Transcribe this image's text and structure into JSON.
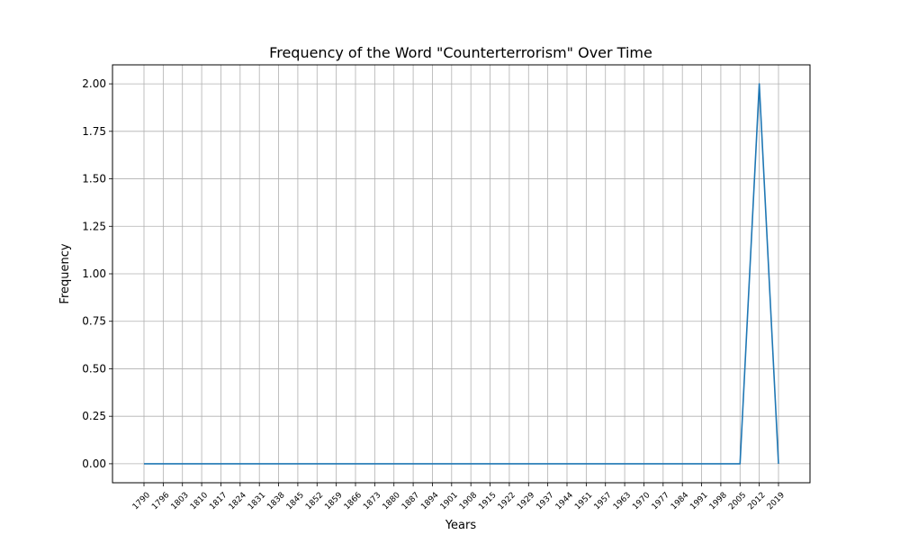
{
  "chart_data": {
    "type": "line",
    "title": "Frequency of the Word \"Counterterrorism\" Over Time",
    "xlabel": "Years",
    "ylabel": "Frequency",
    "x": [
      "1790",
      "1796",
      "1803",
      "1810",
      "1817",
      "1824",
      "1831",
      "1838",
      "1845",
      "1852",
      "1859",
      "1866",
      "1873",
      "1880",
      "1887",
      "1894",
      "1901",
      "1908",
      "1915",
      "1922",
      "1929",
      "1937",
      "1944",
      "1951",
      "1957",
      "1963",
      "1970",
      "1977",
      "1984",
      "1991",
      "1998",
      "2005",
      "2012",
      "2019"
    ],
    "series": [
      {
        "values": [
          0,
          0,
          0,
          0,
          0,
          0,
          0,
          0,
          0,
          0,
          0,
          0,
          0,
          0,
          0,
          0,
          0,
          0,
          0,
          0,
          0,
          0,
          0,
          0,
          0,
          0,
          0,
          0,
          0,
          0,
          0,
          0,
          2,
          0
        ],
        "color": "#1f77b4"
      }
    ],
    "yticks": [
      "0.00",
      "0.25",
      "0.50",
      "0.75",
      "1.00",
      "1.25",
      "1.50",
      "1.75",
      "2.00"
    ],
    "ylim": [
      -0.1,
      2.1
    ],
    "grid": true,
    "legend": "none"
  }
}
